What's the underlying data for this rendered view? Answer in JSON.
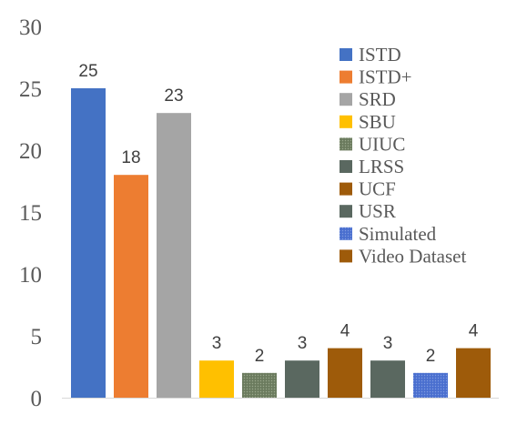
{
  "chart_data": {
    "type": "bar",
    "title": "",
    "xlabel": "",
    "ylabel": "",
    "ylim": [
      0,
      30
    ],
    "yticks": [
      0,
      5,
      10,
      15,
      20,
      25,
      30
    ],
    "grid": false,
    "legend_position": "top-right",
    "categories": [
      "ISTD",
      "ISTD+",
      "SRD",
      "SBU",
      "UIUC",
      "LRSS",
      "UCF",
      "USR",
      "Simulated",
      "Video Dataset"
    ],
    "values": [
      25,
      18,
      23,
      3,
      2,
      3,
      4,
      3,
      2,
      4
    ],
    "colors": [
      "#4472C4",
      "#ED7D31",
      "#A5A5A5",
      "#FFC000",
      "#6B7B5E",
      "#5A6860",
      "#9E5B0A",
      "#5A6860",
      "#4A6FCF",
      "#9E5B0A"
    ],
    "patterned": [
      false,
      false,
      false,
      false,
      true,
      false,
      false,
      false,
      true,
      false
    ]
  }
}
